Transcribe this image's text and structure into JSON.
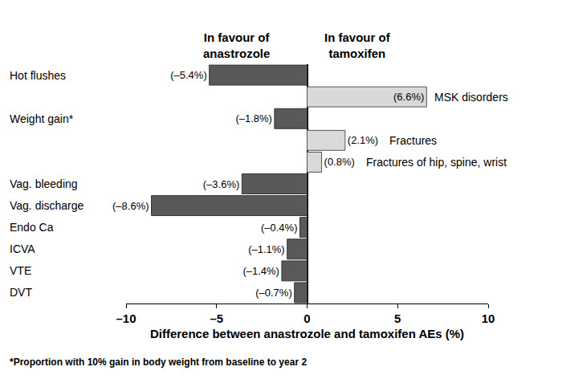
{
  "chart_data": {
    "type": "bar",
    "orientation": "horizontal",
    "categories": [
      "Hot flushes",
      "MSK disorders",
      "Weight gain*",
      "Fractures",
      "Fractures of hip, spine, wrist",
      "Vag. bleeding",
      "Vag. discharge",
      "Endo Ca",
      "ICVA",
      "VTE",
      "DVT"
    ],
    "values": [
      -5.4,
      6.6,
      -1.8,
      2.1,
      0.8,
      -3.6,
      -8.6,
      -0.4,
      -1.1,
      -1.4,
      -0.7
    ],
    "value_labels": [
      "(–5.4%)",
      "(6.6%)",
      "(–1.8%)",
      "(2.1%)",
      "(0.8%)",
      "(–3.6%)",
      "(–8.6%)",
      "(–0.4%)",
      "(–1.1%)",
      "(–1.4%)",
      "(–0.7%)"
    ],
    "colors": [
      "#595959",
      "#d9d9d9",
      "#595959",
      "#d9d9d9",
      "#d9d9d9",
      "#595959",
      "#595959",
      "#595959",
      "#595959",
      "#595959",
      "#595959"
    ],
    "xlabel": "Difference between anastrozole and tamoxifen AEs (%)",
    "xlim": [
      -10,
      10
    ],
    "xticks": [
      {
        "value": -10,
        "label": "–10"
      },
      {
        "value": -5,
        "label": "–5"
      },
      0,
      5,
      10
    ],
    "annotations": [
      "In favour of\nanastrozole",
      "In favour of\ntamoxifen",
      "*Proportion with 10% gain in body weight from baseline to year 2"
    ],
    "data_labels": true,
    "tick_labels": "x",
    "grid": false
  }
}
